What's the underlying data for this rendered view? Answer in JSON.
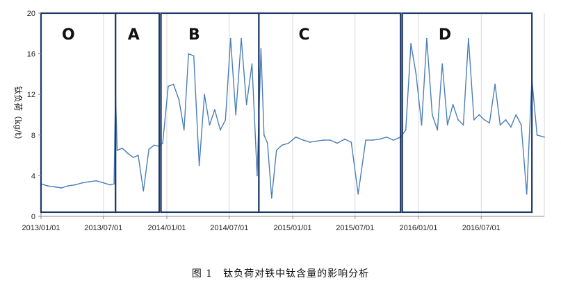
{
  "chart_data": {
    "type": "line",
    "title": "",
    "ylabel": "钛负荷（kg/t）",
    "xlabel": "",
    "ylim": [
      0,
      20
    ],
    "yticks": [
      0,
      4,
      8,
      12,
      16,
      20
    ],
    "xlim": [
      "2013/01/01",
      "2016/12/31"
    ],
    "xticks": [
      "2013/01/01",
      "2013/07/01",
      "2014/01/01",
      "2014/07/01",
      "2015/01/01",
      "2015/07/01",
      "2016/01/01",
      "2016/07/01"
    ],
    "grid": "vertical",
    "regions": [
      {
        "label": "O",
        "start": "2013/01/01",
        "end": "2013/08/05"
      },
      {
        "label": "A",
        "start": "2013/08/05",
        "end": "2013/12/10"
      },
      {
        "label": "B",
        "start": "2013/12/15",
        "end": "2014/09/25"
      },
      {
        "label": "C",
        "start": "2014/09/25",
        "end": "2015/11/10"
      },
      {
        "label": "D",
        "start": "2015/11/15",
        "end": "2016/11/25"
      }
    ],
    "series": [
      {
        "x": [
          "2013/01/01",
          "2013/01/20",
          "2013/02/10",
          "2013/03/01",
          "2013/03/20",
          "2013/04/10",
          "2013/05/01",
          "2013/05/20",
          "2013/06/10",
          "2013/07/01",
          "2013/07/20",
          "2013/08/01",
          "2013/08/05",
          "2013/08/10",
          "2013/08/25",
          "2013/09/10",
          "2013/09/25",
          "2013/10/10",
          "2013/10/25",
          "2013/11/10",
          "2013/11/25",
          "2013/12/10",
          "2013/12/20",
          "2014/01/05",
          "2014/01/20",
          "2014/02/05",
          "2014/02/20",
          "2014/03/05",
          "2014/03/20",
          "2014/04/05",
          "2014/04/20",
          "2014/05/05",
          "2014/05/20",
          "2014/06/05",
          "2014/06/20",
          "2014/07/05",
          "2014/07/20",
          "2014/08/05",
          "2014/08/20",
          "2014/09/05",
          "2014/09/20",
          "2014/10/01",
          "2014/10/10",
          "2014/10/20",
          "2014/11/01",
          "2014/11/15",
          "2014/12/01",
          "2014/12/20",
          "2015/01/10",
          "2015/02/01",
          "2015/02/20",
          "2015/03/10",
          "2015/04/01",
          "2015/04/20",
          "2015/05/10",
          "2015/06/01",
          "2015/06/20",
          "2015/07/10",
          "2015/08/01",
          "2015/08/20",
          "2015/09/10",
          "2015/10/01",
          "2015/10/20",
          "2015/11/10",
          "2015/11/25",
          "2015/12/10",
          "2015/12/25",
          "2016/01/10",
          "2016/01/25",
          "2016/02/10",
          "2016/02/25",
          "2016/03/10",
          "2016/03/25",
          "2016/04/10",
          "2016/04/25",
          "2016/05/10",
          "2016/05/25",
          "2016/06/10",
          "2016/06/25",
          "2016/07/10",
          "2016/07/25",
          "2016/08/10",
          "2016/08/25",
          "2016/09/10",
          "2016/09/25",
          "2016/10/10",
          "2016/10/25",
          "2016/11/10",
          "2016/11/25",
          "2016/12/10",
          "2016/12/31"
        ],
        "y": [
          3.2,
          3.0,
          2.9,
          2.8,
          3.0,
          3.1,
          3.3,
          3.4,
          3.5,
          3.3,
          3.1,
          3.2,
          12.2,
          6.5,
          6.7,
          6.2,
          5.8,
          6.0,
          2.5,
          6.6,
          7.0,
          6.9,
          7.2,
          12.8,
          13.0,
          11.5,
          8.5,
          16.0,
          15.8,
          5.0,
          12.0,
          9.0,
          10.5,
          8.5,
          9.5,
          17.5,
          10.0,
          17.5,
          11.0,
          15.0,
          4.0,
          16.5,
          8.0,
          7.2,
          1.8,
          6.5,
          7.0,
          7.2,
          7.8,
          7.5,
          7.3,
          7.4,
          7.5,
          7.5,
          7.2,
          7.6,
          7.3,
          2.2,
          7.5,
          7.5,
          7.6,
          7.8,
          7.5,
          7.8,
          8.5,
          17.0,
          14.0,
          9.0,
          17.5,
          10.0,
          8.5,
          15.0,
          9.0,
          11.0,
          9.5,
          9.0,
          17.5,
          9.5,
          10.0,
          9.5,
          9.2,
          13.0,
          9.0,
          9.5,
          8.8,
          10.0,
          9.0,
          2.2,
          13.5,
          8.0,
          7.8
        ]
      }
    ]
  },
  "caption": "图 1　钛负荷对铁中钛含量的影响分析"
}
